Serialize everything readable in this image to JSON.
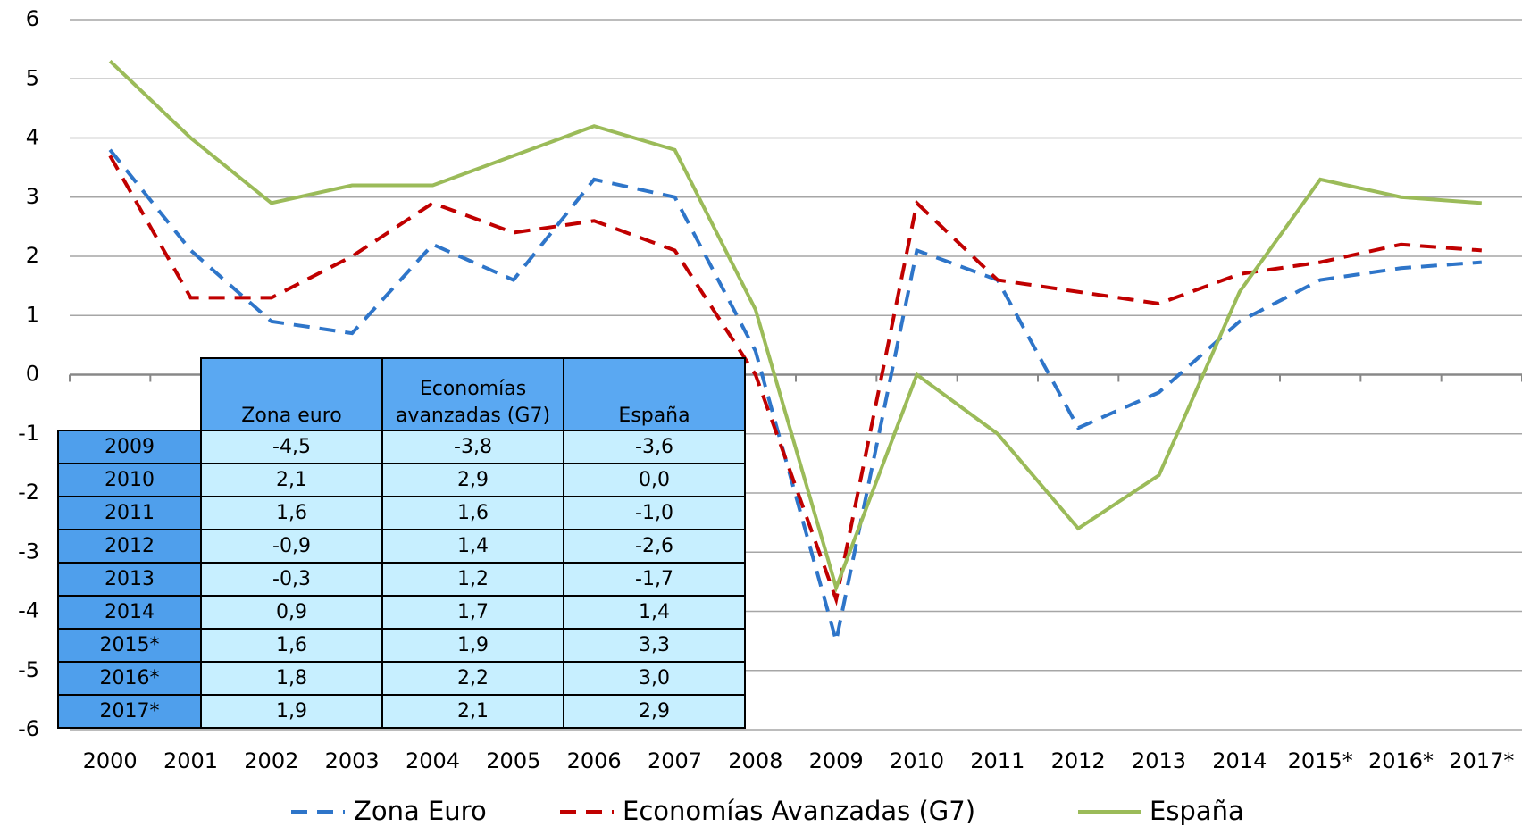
{
  "chart_data": {
    "type": "line",
    "categories": [
      "2000",
      "2001",
      "2002",
      "2003",
      "2004",
      "2005",
      "2006",
      "2007",
      "2008",
      "2009",
      "2010",
      "2011",
      "2012",
      "2013",
      "2014",
      "2015*",
      "2016*",
      "2017*"
    ],
    "ylim": [
      -6,
      6
    ],
    "yticks": [
      -6,
      -5,
      -4,
      -3,
      -2,
      -1,
      0,
      1,
      2,
      3,
      4,
      5,
      6
    ],
    "grid": true,
    "series": [
      {
        "name": "Zona Euro",
        "color": "#2e75c9",
        "dash": true,
        "values": [
          3.8,
          2.1,
          0.9,
          0.7,
          2.2,
          1.6,
          3.3,
          3.0,
          0.4,
          -4.5,
          2.1,
          1.6,
          -0.9,
          -0.3,
          0.9,
          1.6,
          1.8,
          1.9
        ]
      },
      {
        "name": "Economías Avanzadas (G7)",
        "color": "#c00000",
        "dash": true,
        "values": [
          3.7,
          1.3,
          1.3,
          2.0,
          2.9,
          2.4,
          2.6,
          2.1,
          0.0,
          -3.8,
          2.9,
          1.6,
          1.4,
          1.2,
          1.7,
          1.9,
          2.2,
          2.1
        ]
      },
      {
        "name": "España",
        "color": "#9bbb59",
        "dash": false,
        "values": [
          5.3,
          4.0,
          2.9,
          3.2,
          3.2,
          3.7,
          4.2,
          3.8,
          1.1,
          -3.6,
          0.0,
          -1.0,
          -2.6,
          -1.7,
          1.4,
          3.3,
          3.0,
          2.9
        ]
      }
    ],
    "table": {
      "header": [
        "Zona euro",
        "Economías avanzadas (G7)",
        "España"
      ],
      "rows": [
        {
          "label": "2009",
          "cells": [
            "-4,5",
            "-3,8",
            "-3,6"
          ]
        },
        {
          "label": "2010",
          "cells": [
            "2,1",
            "2,9",
            "0,0"
          ]
        },
        {
          "label": "2011",
          "cells": [
            "1,6",
            "1,6",
            "-1,0"
          ]
        },
        {
          "label": "2012",
          "cells": [
            "-0,9",
            "1,4",
            "-2,6"
          ]
        },
        {
          "label": "2013",
          "cells": [
            "-0,3",
            "1,2",
            "-1,7"
          ]
        },
        {
          "label": "2014",
          "cells": [
            "0,9",
            "1,7",
            "1,4"
          ]
        },
        {
          "label": "2015*",
          "cells": [
            "1,6",
            "1,9",
            "3,3"
          ]
        },
        {
          "label": "2016*",
          "cells": [
            "1,8",
            "2,2",
            "3,0"
          ]
        },
        {
          "label": "2017*",
          "cells": [
            "1,9",
            "2,1",
            "2,9"
          ]
        }
      ]
    }
  }
}
